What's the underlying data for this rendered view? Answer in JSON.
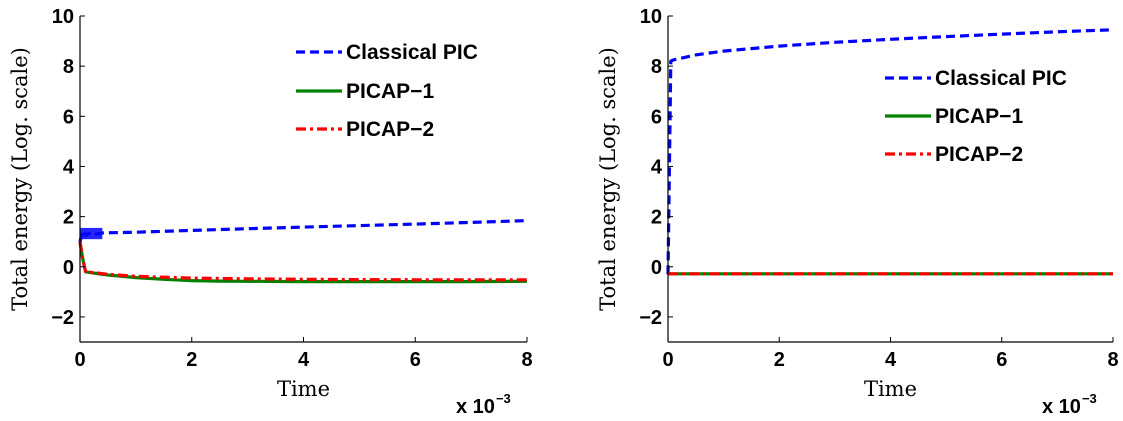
{
  "chart_data": [
    {
      "type": "line",
      "xlabel": "Time",
      "ylabel": "Total energy (Log. scale)",
      "x_multiplier": {
        "base": "x 10",
        "exponent": "−3"
      },
      "xlim": [
        0,
        0.008
      ],
      "ylim": [
        -3,
        10
      ],
      "x_ticks": [
        0,
        0.002,
        0.004,
        0.006,
        0.008
      ],
      "x_tick_labels": [
        "0",
        "2",
        "4",
        "6",
        "8"
      ],
      "y_ticks": [
        -2,
        0,
        2,
        4,
        6,
        8,
        10
      ],
      "y_tick_labels": [
        "−2",
        "0",
        "2",
        "4",
        "6",
        "8",
        "10"
      ],
      "grid": false,
      "legend_position": "top-right",
      "series": [
        {
          "name": "Classical PIC",
          "color": "#0000ff",
          "style": "dashed",
          "x": [
            0,
            5e-05,
            0.0001,
            0.0002,
            0.0003,
            0.0004,
            0.0006,
            0.001,
            0.002,
            0.003,
            0.004,
            0.005,
            0.006,
            0.007,
            0.008
          ],
          "y": [
            1.0,
            1.45,
            1.25,
            1.38,
            1.3,
            1.35,
            1.36,
            1.38,
            1.45,
            1.52,
            1.58,
            1.64,
            1.7,
            1.77,
            1.84
          ]
        },
        {
          "name": "PICAP−1",
          "color": "#008000",
          "style": "solid",
          "x": [
            0,
            5e-05,
            0.0001,
            0.0003,
            0.0005,
            0.001,
            0.0015,
            0.002,
            0.0025,
            0.003,
            0.004,
            0.005,
            0.006,
            0.007,
            0.008
          ],
          "y": [
            1.0,
            0.3,
            -0.2,
            -0.27,
            -0.33,
            -0.43,
            -0.5,
            -0.55,
            -0.57,
            -0.58,
            -0.59,
            -0.59,
            -0.59,
            -0.59,
            -0.58
          ]
        },
        {
          "name": "PICAP−2",
          "color": "#ff0000",
          "style": "dashdot",
          "x": [
            0,
            5e-05,
            0.0001,
            0.0003,
            0.0005,
            0.001,
            0.002,
            0.003,
            0.004,
            0.005,
            0.006,
            0.007,
            0.008
          ],
          "y": [
            1.0,
            0.3,
            -0.2,
            -0.25,
            -0.3,
            -0.38,
            -0.45,
            -0.48,
            -0.5,
            -0.51,
            -0.52,
            -0.52,
            -0.52
          ]
        }
      ]
    },
    {
      "type": "line",
      "xlabel": "Time",
      "ylabel": "Total energy (Log. scale)",
      "x_multiplier": {
        "base": "x 10",
        "exponent": "−3"
      },
      "xlim": [
        0,
        0.008
      ],
      "ylim": [
        -3,
        10
      ],
      "x_ticks": [
        0,
        0.002,
        0.004,
        0.006,
        0.008
      ],
      "x_tick_labels": [
        "0",
        "2",
        "4",
        "6",
        "8"
      ],
      "y_ticks": [
        -2,
        0,
        2,
        4,
        6,
        8,
        10
      ],
      "y_tick_labels": [
        "−2",
        "0",
        "2",
        "4",
        "6",
        "8",
        "10"
      ],
      "grid": false,
      "legend_position": "upper-right",
      "series": [
        {
          "name": "Classical PIC",
          "color": "#0000ff",
          "style": "dashed",
          "x": [
            0,
            5e-05,
            0.0001,
            0.0003,
            0.0005,
            0.001,
            0.0015,
            0.002,
            0.003,
            0.004,
            0.005,
            0.006,
            0.007,
            0.008
          ],
          "y": [
            -0.3,
            8.2,
            8.25,
            8.35,
            8.45,
            8.6,
            8.7,
            8.8,
            8.95,
            9.07,
            9.18,
            9.28,
            9.37,
            9.45
          ]
        },
        {
          "name": "PICAP−1",
          "color": "#008000",
          "style": "solid",
          "x": [
            0,
            0.008
          ],
          "y": [
            -0.28,
            -0.28
          ]
        },
        {
          "name": "PICAP−2",
          "color": "#ff0000",
          "style": "dashdot",
          "x": [
            0,
            0.008
          ],
          "y": [
            -0.28,
            -0.28
          ]
        }
      ]
    }
  ]
}
